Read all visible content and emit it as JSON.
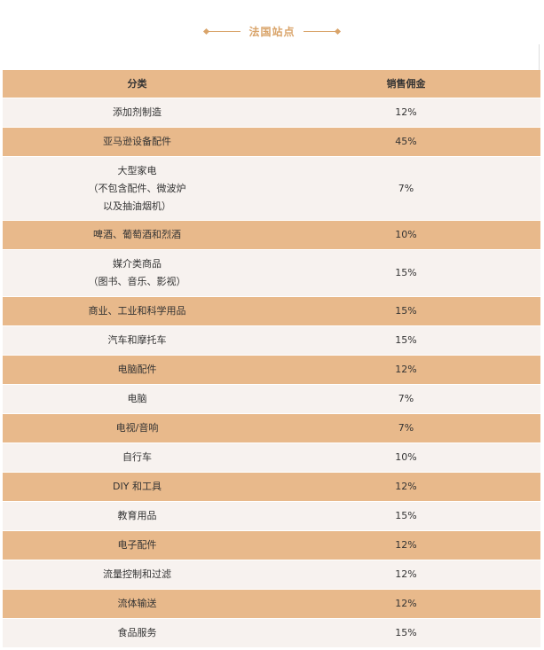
{
  "title": "法国站点",
  "table": {
    "headers": [
      "分类",
      "销售佣金"
    ],
    "rows": [
      {
        "category": "添加剂制造",
        "rate": "12%"
      },
      {
        "category": "亚马逊设备配件",
        "rate": "45%"
      },
      {
        "category": "大型家电\n（不包含配件、微波炉\n以及抽油烟机）",
        "rate": "7%"
      },
      {
        "category": "啤酒、葡萄酒和烈酒",
        "rate": "10%"
      },
      {
        "category": "媒介类商品\n（图书、音乐、影视）",
        "rate": "15%"
      },
      {
        "category": "商业、工业和科学用品",
        "rate": "15%"
      },
      {
        "category": "汽车和摩托车",
        "rate": "15%"
      },
      {
        "category": "电脑配件",
        "rate": "12%"
      },
      {
        "category": "电脑",
        "rate": "7%"
      },
      {
        "category": "电视/音响",
        "rate": "7%"
      },
      {
        "category": "自行车",
        "rate": "10%"
      },
      {
        "category": "DIY 和工具",
        "rate": "12%"
      },
      {
        "category": "教育用品",
        "rate": "15%"
      },
      {
        "category": "电子配件",
        "rate": "12%"
      },
      {
        "category": "流量控制和过滤",
        "rate": "12%"
      },
      {
        "category": "流体输送",
        "rate": "12%"
      },
      {
        "category": "食品服务",
        "rate": "15%"
      }
    ]
  },
  "colors": {
    "accent": "#d9a46a",
    "row_dark": "#e8b98b",
    "row_light": "#f7f2ef"
  }
}
